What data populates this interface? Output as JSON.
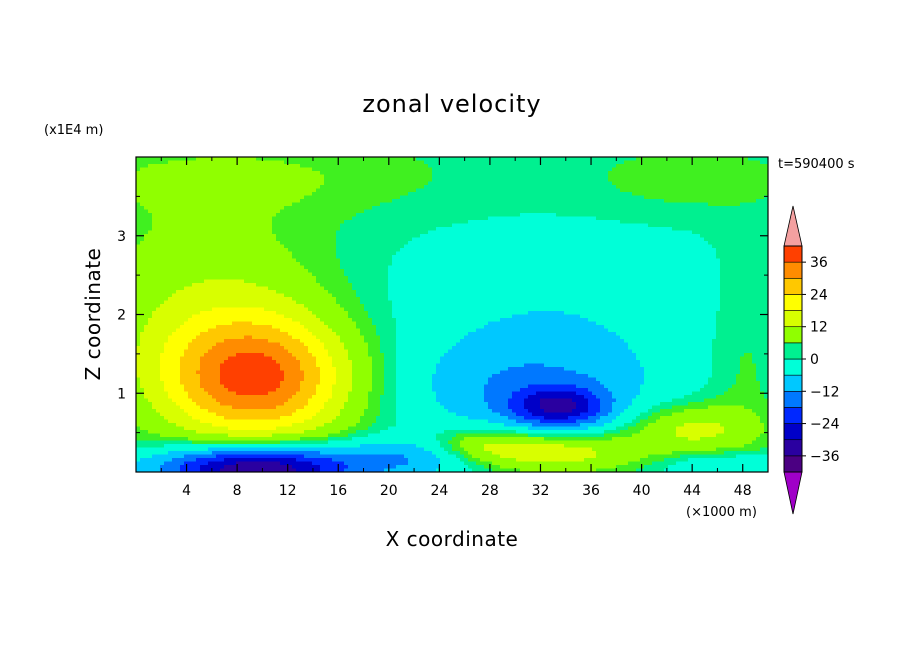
{
  "chart_data": {
    "type": "heatmap",
    "title": "zonal velocity",
    "xlabel": "X coordinate",
    "ylabel": "Z coordinate",
    "x_unit": "(×1000 m)",
    "y_unit": "(x1E4 m)",
    "time_label": "t=590400 s",
    "x_ticks": [
      "4",
      "8",
      "12",
      "16",
      "20",
      "24",
      "28",
      "32",
      "36",
      "40",
      "44",
      "48"
    ],
    "y_ticks": [
      "1",
      "2",
      "3"
    ],
    "xlim": [
      0,
      50
    ],
    "ylim": [
      0,
      4
    ],
    "colorbar": {
      "tick_labels": [
        "36",
        "24",
        "12",
        "0",
        "−12",
        "−24",
        "−36"
      ],
      "tick_values": [
        36,
        24,
        12,
        0,
        -12,
        -24,
        -36
      ],
      "range": [
        -42,
        42
      ],
      "over_color": "#f4a0a0",
      "under_color": "#a000c8"
    },
    "colors": {
      "levels": [
        {
          "v": -42,
          "c": "#4b0082"
        },
        {
          "v": -36,
          "c": "#2a00a0"
        },
        {
          "v": -30,
          "c": "#0000c8"
        },
        {
          "v": -24,
          "c": "#0028ff"
        },
        {
          "v": -18,
          "c": "#0078ff"
        },
        {
          "v": -12,
          "c": "#00c8ff"
        },
        {
          "v": -6,
          "c": "#00ffd8"
        },
        {
          "v": 0,
          "c": "#00f090"
        },
        {
          "v": 3,
          "c": "#40f020"
        },
        {
          "v": 6,
          "c": "#90ff00"
        },
        {
          "v": 12,
          "c": "#d8ff00"
        },
        {
          "v": 18,
          "c": "#ffff00"
        },
        {
          "v": 24,
          "c": "#ffc800"
        },
        {
          "v": 30,
          "c": "#ff8c00"
        },
        {
          "v": 36,
          "c": "#ff4000"
        },
        {
          "v": 42,
          "c": "#e60000"
        }
      ]
    },
    "features": [
      {
        "x": 9.5,
        "z": 1.2,
        "value": 32,
        "note": "positive jet core"
      },
      {
        "x": 9.5,
        "z": 0.1,
        "value": -36,
        "note": "negative low-level core"
      },
      {
        "x": 34,
        "z": 0.8,
        "value": -22,
        "note": "negative lobe"
      },
      {
        "x": 33,
        "z": 0.25,
        "value": 14,
        "note": "low-level positive"
      },
      {
        "x": 44,
        "z": 0.55,
        "value": 12,
        "note": "right positive lobe"
      },
      {
        "x": 30,
        "z": 2.0,
        "value": -7,
        "note": "weak negative mid-level"
      },
      {
        "x": 10,
        "z": 3.7,
        "value": 4,
        "note": "weak positive upper"
      }
    ]
  }
}
